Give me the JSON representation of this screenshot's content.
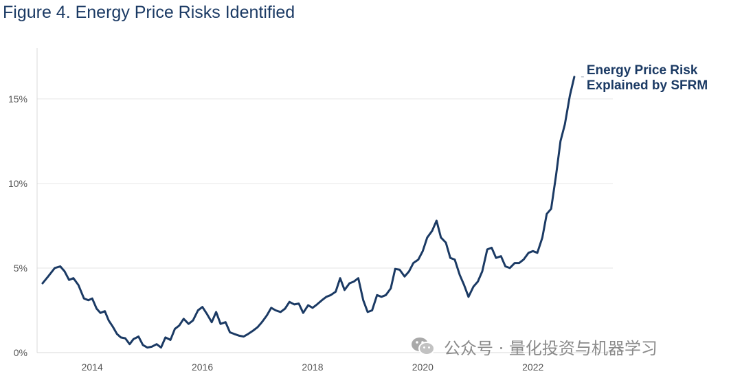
{
  "figure": {
    "title": "Figure 4. Energy Price Risks Identified"
  },
  "watermark": {
    "text": "公众号 · 量化投资与机器学习",
    "icon": "wechat-icon"
  },
  "colors": {
    "line": "#1b3a64",
    "grid": "#e6e6e6",
    "axis": "#d9d9d9",
    "tick_text": "#555555",
    "title": "#1b3a64"
  },
  "chart_data": {
    "type": "line",
    "title": "",
    "xlabel": "",
    "ylabel": "",
    "xlim": [
      2013,
      2023.45
    ],
    "ylim": [
      0,
      18
    ],
    "x_ticks": [
      2014,
      2016,
      2018,
      2020,
      2022
    ],
    "x_tick_labels": [
      "2014",
      "2016",
      "2018",
      "2020",
      "2022"
    ],
    "y_ticks": [
      0,
      5,
      10,
      15
    ],
    "y_tick_labels": [
      "0%",
      "5%",
      "10%",
      "15%"
    ],
    "grid": "horizontal",
    "legend": "none",
    "series": [
      {
        "name": "Energy Price Risk Explained by SFRM",
        "label_lines": [
          "Energy Price Risk",
          "Explained by SFRM"
        ],
        "x": [
          2013.1,
          2013.2,
          2013.32,
          2013.42,
          2013.5,
          2013.58,
          2013.66,
          2013.75,
          2013.85,
          2013.93,
          2014.0,
          2014.08,
          2014.15,
          2014.23,
          2014.3,
          2014.38,
          2014.45,
          2014.52,
          2014.6,
          2014.68,
          2014.75,
          2014.84,
          2014.92,
          2015.0,
          2015.08,
          2015.17,
          2015.25,
          2015.33,
          2015.42,
          2015.5,
          2015.58,
          2015.66,
          2015.75,
          2015.83,
          2015.92,
          2016.0,
          2016.08,
          2016.17,
          2016.25,
          2016.33,
          2016.42,
          2016.5,
          2016.58,
          2016.67,
          2016.75,
          2016.83,
          2016.92,
          2017.0,
          2017.08,
          2017.17,
          2017.25,
          2017.33,
          2017.42,
          2017.5,
          2017.58,
          2017.67,
          2017.75,
          2017.83,
          2017.92,
          2018.0,
          2018.08,
          2018.17,
          2018.25,
          2018.33,
          2018.42,
          2018.5,
          2018.58,
          2018.67,
          2018.75,
          2018.83,
          2018.92,
          2019.0,
          2019.08,
          2019.17,
          2019.25,
          2019.33,
          2019.42,
          2019.5,
          2019.58,
          2019.67,
          2019.75,
          2019.83,
          2019.92,
          2020.0,
          2020.08,
          2020.17,
          2020.25,
          2020.33,
          2020.42,
          2020.5,
          2020.58,
          2020.67,
          2020.75,
          2020.83,
          2020.92,
          2021.0,
          2021.08,
          2021.17,
          2021.25,
          2021.33,
          2021.42,
          2021.5,
          2021.58,
          2021.67,
          2021.75,
          2021.83,
          2021.92,
          2022.0,
          2022.08,
          2022.17,
          2022.25,
          2022.33,
          2022.42,
          2022.5,
          2022.58,
          2022.67,
          2022.75
        ],
        "values": [
          4.1,
          4.5,
          5.0,
          5.1,
          4.8,
          4.3,
          4.4,
          4.0,
          3.2,
          3.1,
          3.2,
          2.6,
          2.35,
          2.45,
          1.9,
          1.5,
          1.1,
          0.9,
          0.85,
          0.5,
          0.8,
          0.95,
          0.45,
          0.3,
          0.35,
          0.5,
          0.3,
          0.9,
          0.75,
          1.4,
          1.6,
          2.0,
          1.7,
          1.9,
          2.5,
          2.7,
          2.3,
          1.8,
          2.4,
          1.7,
          1.8,
          1.2,
          1.1,
          1.0,
          0.95,
          1.1,
          1.3,
          1.5,
          1.8,
          2.2,
          2.65,
          2.5,
          2.4,
          2.6,
          3.0,
          2.85,
          2.9,
          2.35,
          2.8,
          2.65,
          2.85,
          3.1,
          3.3,
          3.4,
          3.6,
          4.4,
          3.7,
          4.1,
          4.2,
          4.4,
          3.1,
          2.4,
          2.5,
          3.4,
          3.3,
          3.4,
          3.8,
          4.95,
          4.9,
          4.5,
          4.8,
          5.3,
          5.5,
          6.0,
          6.8,
          7.2,
          7.8,
          6.8,
          6.5,
          5.6,
          5.5,
          4.6,
          4.0,
          3.3,
          3.9,
          4.2,
          4.8,
          6.1,
          6.2,
          5.6,
          5.7,
          5.1,
          5.0,
          5.3,
          5.3,
          5.5,
          5.9,
          6.0,
          5.9,
          6.8,
          8.2,
          8.5,
          10.5,
          12.5,
          13.5,
          15.2,
          16.3
        ]
      }
    ]
  }
}
